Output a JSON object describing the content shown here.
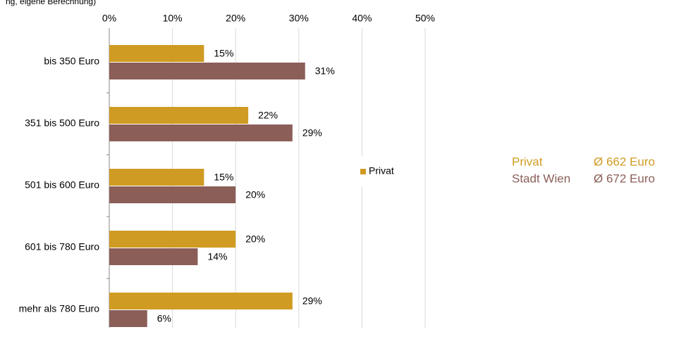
{
  "chart_data": {
    "type": "hbar",
    "source": "ng, eigene Berechnung)",
    "categories": [
      "bis 350 Euro",
      "351 bis 500 Euro",
      "501 bis 600 Euro",
      "601 bis 780 Euro",
      "mehr als 780 Euro"
    ],
    "series": [
      {
        "name": "Privat",
        "color": "#cf9b22",
        "values": [
          15,
          22,
          15,
          20,
          29
        ],
        "value_labels": [
          "15%",
          "22%",
          "15%",
          "20%",
          "29%"
        ]
      },
      {
        "name": "Stadt Wien",
        "color": "#8b5e58",
        "values": [
          31,
          29,
          20,
          14,
          6
        ],
        "value_labels": [
          "31%",
          "29%",
          "20%",
          "14%",
          "6%"
        ]
      }
    ],
    "xlim": [
      0,
      50
    ],
    "xticks": [
      {
        "value": 0,
        "label": "0%"
      },
      {
        "value": 10,
        "label": "10%"
      },
      {
        "value": 20,
        "label": "20%"
      },
      {
        "value": 30,
        "label": "30%"
      },
      {
        "value": 40,
        "label": "40%"
      },
      {
        "value": 50,
        "label": "50%"
      }
    ],
    "grid": true,
    "legend": {
      "series": [
        0
      ]
    },
    "averages": [
      "Ø 662 Euro",
      "Ø 672 Euro"
    ]
  }
}
